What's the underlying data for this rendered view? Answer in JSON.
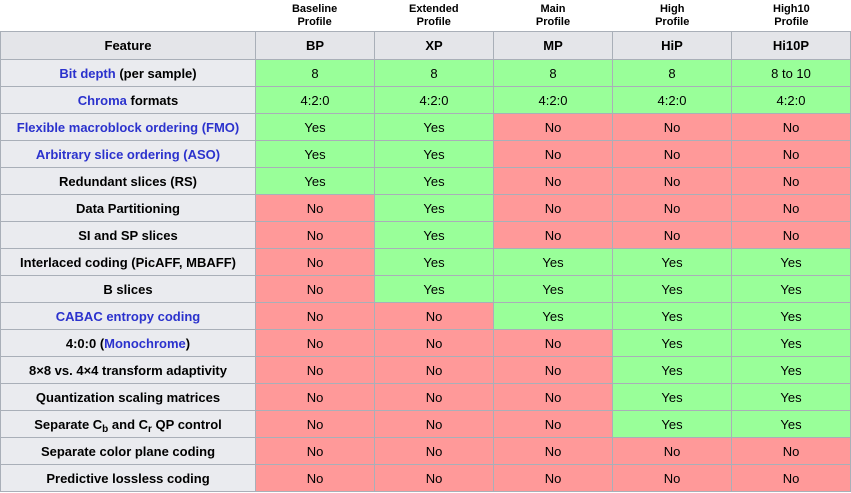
{
  "colors": {
    "yes_bg": "#99ff99",
    "no_bg": "#ff9999",
    "header_bg": "#e4e5e9",
    "label_bg": "#eaebef",
    "border": "#a9afb8",
    "link": "#2b32cd",
    "text": "#000000"
  },
  "profiles": [
    {
      "line1": "Baseline",
      "line2": "Profile"
    },
    {
      "line1": "Extended",
      "line2": "Profile"
    },
    {
      "line1": "Main",
      "line2": "Profile"
    },
    {
      "line1": "High",
      "line2": "Profile"
    },
    {
      "line1": "High10",
      "line2": "Profile"
    }
  ],
  "table": {
    "header": [
      "Feature",
      "BP",
      "XP",
      "MP",
      "HiP",
      "Hi10P"
    ],
    "rows": [
      {
        "feature": [
          {
            "text": "Bit depth",
            "link": true
          },
          {
            "text": " (per sample)"
          }
        ],
        "values": [
          "8",
          "8",
          "8",
          "8",
          "8 to 10"
        ]
      },
      {
        "feature": [
          {
            "text": "Chroma",
            "link": true
          },
          {
            "text": " formats"
          }
        ],
        "values": [
          "4:2:0",
          "4:2:0",
          "4:2:0",
          "4:2:0",
          "4:2:0"
        ]
      },
      {
        "feature": [
          {
            "text": "Flexible macroblock ordering (FMO)",
            "link": true
          }
        ],
        "values": [
          "Yes",
          "Yes",
          "No",
          "No",
          "No"
        ]
      },
      {
        "feature": [
          {
            "text": "Arbitrary slice ordering (ASO)",
            "link": true
          }
        ],
        "values": [
          "Yes",
          "Yes",
          "No",
          "No",
          "No"
        ]
      },
      {
        "feature": [
          {
            "text": "Redundant slices (RS)"
          }
        ],
        "values": [
          "Yes",
          "Yes",
          "No",
          "No",
          "No"
        ]
      },
      {
        "feature": [
          {
            "text": "Data Partitioning"
          }
        ],
        "values": [
          "No",
          "Yes",
          "No",
          "No",
          "No"
        ]
      },
      {
        "feature": [
          {
            "text": "SI and SP slices"
          }
        ],
        "values": [
          "No",
          "Yes",
          "No",
          "No",
          "No"
        ]
      },
      {
        "feature": [
          {
            "text": "Interlaced coding (PicAFF, MBAFF)"
          }
        ],
        "values": [
          "No",
          "Yes",
          "Yes",
          "Yes",
          "Yes"
        ]
      },
      {
        "feature": [
          {
            "text": "B slices"
          }
        ],
        "values": [
          "No",
          "Yes",
          "Yes",
          "Yes",
          "Yes"
        ]
      },
      {
        "feature": [
          {
            "text": "CABAC entropy coding",
            "link": true
          }
        ],
        "values": [
          "No",
          "No",
          "Yes",
          "Yes",
          "Yes"
        ]
      },
      {
        "feature": [
          {
            "text": "4:0:0 ("
          },
          {
            "text": "Monochrome",
            "link": true
          },
          {
            "text": ")"
          }
        ],
        "values": [
          "No",
          "No",
          "No",
          "Yes",
          "Yes"
        ]
      },
      {
        "feature": [
          {
            "text": "8×8 vs. 4×4 transform adaptivity"
          }
        ],
        "values": [
          "No",
          "No",
          "No",
          "Yes",
          "Yes"
        ]
      },
      {
        "feature": [
          {
            "text": "Quantization scaling matrices"
          }
        ],
        "values": [
          "No",
          "No",
          "No",
          "Yes",
          "Yes"
        ]
      },
      {
        "feature": [
          {
            "text": "Separate C"
          },
          {
            "text": "b",
            "sub": true
          },
          {
            "text": " and C"
          },
          {
            "text": "r",
            "sub": true
          },
          {
            "text": " QP control"
          }
        ],
        "values": [
          "No",
          "No",
          "No",
          "Yes",
          "Yes"
        ]
      },
      {
        "feature": [
          {
            "text": "Separate color plane coding"
          }
        ],
        "values": [
          "No",
          "No",
          "No",
          "No",
          "No"
        ]
      },
      {
        "feature": [
          {
            "text": "Predictive lossless coding"
          }
        ],
        "values": [
          "No",
          "No",
          "No",
          "No",
          "No"
        ]
      }
    ]
  },
  "chart_data": {
    "type": "table",
    "column_groups": [
      "Baseline Profile",
      "Extended Profile",
      "Main Profile",
      "High Profile",
      "High10 Profile"
    ],
    "columns": [
      "Feature",
      "BP",
      "XP",
      "MP",
      "HiP",
      "Hi10P"
    ],
    "rows": [
      [
        "Bit depth (per sample)",
        "8",
        "8",
        "8",
        "8",
        "8 to 10"
      ],
      [
        "Chroma formats",
        "4:2:0",
        "4:2:0",
        "4:2:0",
        "4:2:0",
        "4:2:0"
      ],
      [
        "Flexible macroblock ordering (FMO)",
        "Yes",
        "Yes",
        "No",
        "No",
        "No"
      ],
      [
        "Arbitrary slice ordering (ASO)",
        "Yes",
        "Yes",
        "No",
        "No",
        "No"
      ],
      [
        "Redundant slices (RS)",
        "Yes",
        "Yes",
        "No",
        "No",
        "No"
      ],
      [
        "Data Partitioning",
        "No",
        "Yes",
        "No",
        "No",
        "No"
      ],
      [
        "SI and SP slices",
        "No",
        "Yes",
        "No",
        "No",
        "No"
      ],
      [
        "Interlaced coding (PicAFF, MBAFF)",
        "No",
        "Yes",
        "Yes",
        "Yes",
        "Yes"
      ],
      [
        "B slices",
        "No",
        "Yes",
        "Yes",
        "Yes",
        "Yes"
      ],
      [
        "CABAC entropy coding",
        "No",
        "No",
        "Yes",
        "Yes",
        "Yes"
      ],
      [
        "4:0:0 (Monochrome)",
        "No",
        "No",
        "No",
        "Yes",
        "Yes"
      ],
      [
        "8×8 vs. 4×4 transform adaptivity",
        "No",
        "No",
        "No",
        "Yes",
        "Yes"
      ],
      [
        "Quantization scaling matrices",
        "No",
        "No",
        "No",
        "Yes",
        "Yes"
      ],
      [
        "Separate Cb and Cr QP control",
        "No",
        "No",
        "No",
        "Yes",
        "Yes"
      ],
      [
        "Separate color plane coding",
        "No",
        "No",
        "No",
        "No",
        "No"
      ],
      [
        "Predictive lossless coding",
        "No",
        "No",
        "No",
        "No",
        "No"
      ]
    ],
    "cell_colors": {
      "green_#99ff99": "supported (Yes / value)",
      "red_#ff9999": "not supported (No)"
    }
  }
}
